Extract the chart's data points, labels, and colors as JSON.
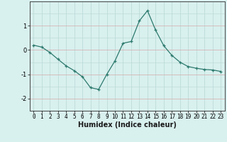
{
  "x": [
    0,
    1,
    2,
    3,
    4,
    5,
    6,
    7,
    8,
    9,
    10,
    11,
    12,
    13,
    14,
    15,
    16,
    17,
    18,
    19,
    20,
    21,
    22,
    23
  ],
  "y": [
    0.2,
    0.12,
    -0.1,
    -0.38,
    -0.65,
    -0.85,
    -1.1,
    -1.55,
    -1.62,
    -1.0,
    -0.45,
    0.28,
    0.35,
    1.2,
    1.62,
    0.82,
    0.18,
    -0.22,
    -0.5,
    -0.68,
    -0.75,
    -0.8,
    -0.82,
    -0.88
  ],
  "line_color": "#2d7a6e",
  "marker": "+",
  "marker_size": 3.5,
  "linewidth": 0.9,
  "background_color": "#d8f0ee",
  "grid_color_v": "#b8d8d5",
  "grid_color_h": "#d4aaaa",
  "xlabel": "Humidex (Indice chaleur)",
  "xlabel_fontsize": 7,
  "tick_fontsize": 5.5,
  "yticks": [
    -2,
    -1,
    0,
    1
  ],
  "ylim": [
    -2.5,
    2.0
  ],
  "xlim": [
    -0.5,
    23.5
  ]
}
